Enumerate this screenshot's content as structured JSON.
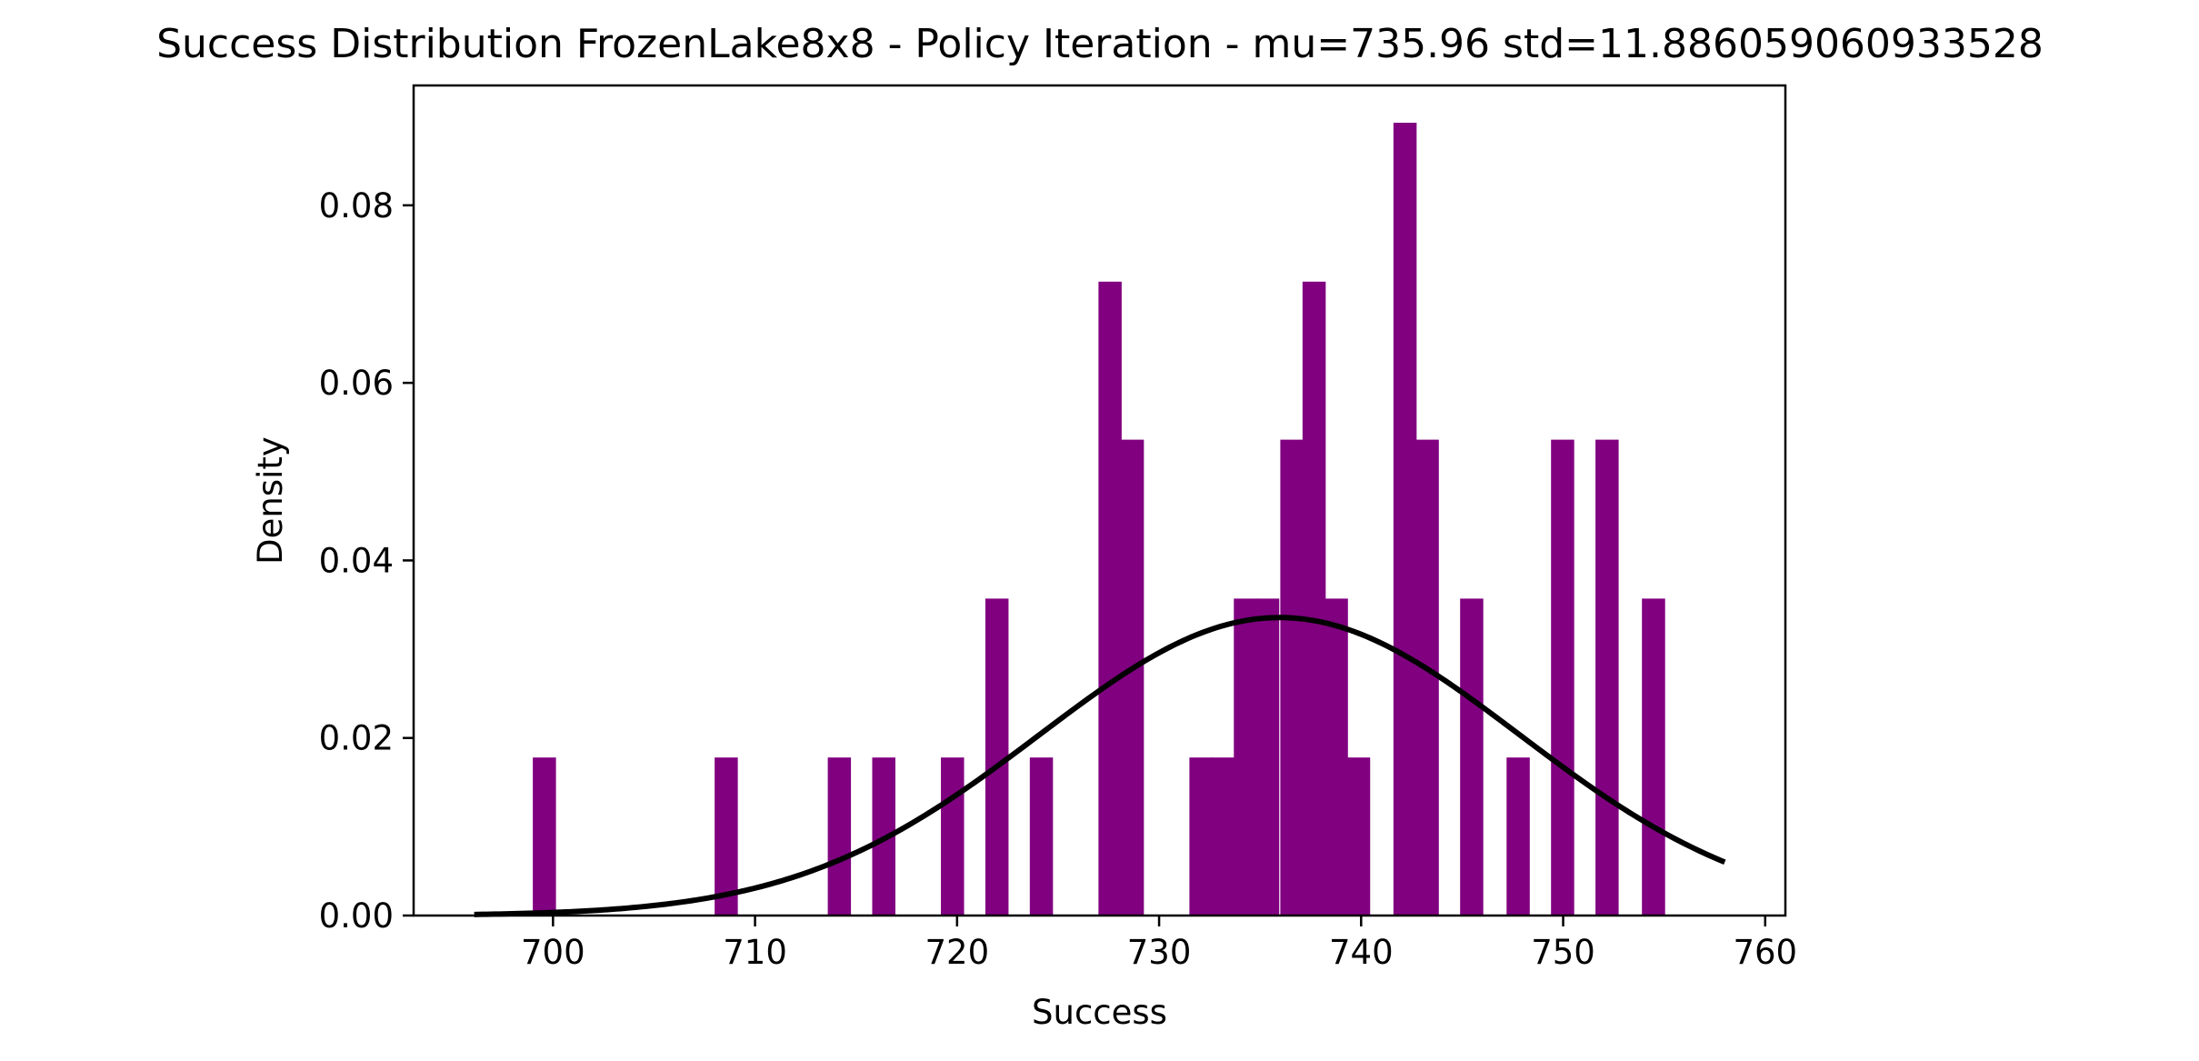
{
  "chart_data": {
    "type": "bar",
    "title": "Success Distribution FrozenLake8x8 - Policy Iteration - mu=735.96 std=11.886059060933528",
    "xlabel": "Success",
    "ylabel": "Density",
    "xlim": [
      693.1,
      761.0
    ],
    "ylim": [
      0,
      0.0935
    ],
    "xticks": [
      700,
      710,
      720,
      730,
      740,
      750,
      760
    ],
    "yticks": [
      0.0,
      0.02,
      0.04,
      0.06,
      0.08
    ],
    "ytick_labels": [
      "0.00",
      "0.02",
      "0.04",
      "0.06",
      "0.08"
    ],
    "grid": false,
    "bin_width": 1.12,
    "bins": [
      {
        "x": 699.0,
        "density": 0.0178
      },
      {
        "x": 708.0,
        "density": 0.0178
      },
      {
        "x": 713.6,
        "density": 0.0178
      },
      {
        "x": 715.8,
        "density": 0.0178
      },
      {
        "x": 719.2,
        "density": 0.0178
      },
      {
        "x": 721.4,
        "density": 0.0357
      },
      {
        "x": 723.6,
        "density": 0.0178
      },
      {
        "x": 727.0,
        "density": 0.0714
      },
      {
        "x": 728.1,
        "density": 0.0536
      },
      {
        "x": 731.5,
        "density": 0.0178
      },
      {
        "x": 732.6,
        "density": 0.0178
      },
      {
        "x": 733.7,
        "density": 0.0357
      },
      {
        "x": 734.8,
        "density": 0.0357
      },
      {
        "x": 736.0,
        "density": 0.0536
      },
      {
        "x": 737.1,
        "density": 0.0714
      },
      {
        "x": 738.2,
        "density": 0.0357
      },
      {
        "x": 739.3,
        "density": 0.0178
      },
      {
        "x": 741.6,
        "density": 0.0893
      },
      {
        "x": 742.7,
        "density": 0.0536
      },
      {
        "x": 744.9,
        "density": 0.0357
      },
      {
        "x": 747.2,
        "density": 0.0178
      },
      {
        "x": 749.4,
        "density": 0.0536
      },
      {
        "x": 751.6,
        "density": 0.0536
      },
      {
        "x": 753.9,
        "density": 0.0357
      }
    ],
    "fit_curve": {
      "type": "normal_pdf",
      "mu": 735.96,
      "std": 11.886059060933528,
      "x_range": [
        696.1,
        758.0
      ]
    },
    "colors": {
      "bars": "#800080",
      "curve": "#000000",
      "axes": "#000000",
      "background": "#ffffff"
    }
  }
}
